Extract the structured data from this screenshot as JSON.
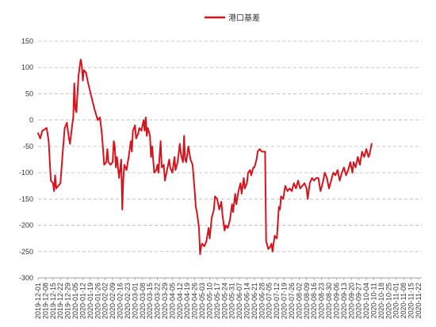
{
  "chart_data": {
    "type": "line",
    "title": "",
    "xlabel": "",
    "ylabel": "",
    "ylim": [
      -300,
      150
    ],
    "y_ticks": [
      150,
      100,
      50,
      0,
      -50,
      -100,
      -150,
      -200,
      -250,
      -300
    ],
    "grid": "horizontal dashed",
    "legend_position": "top-center",
    "x_tick_labels": [
      "2019-12-01",
      "2019-12-08",
      "2019-12-15",
      "2019-12-22",
      "2019-12-29",
      "2020-01-05",
      "2020-01-12",
      "2020-01-19",
      "2020-01-26",
      "2020-02-02",
      "2020-02-09",
      "2020-02-16",
      "2020-02-23",
      "2020-03-01",
      "2020-03-08",
      "2020-03-15",
      "2020-03-22",
      "2020-03-29",
      "2020-04-05",
      "2020-04-12",
      "2020-04-19",
      "2020-04-26",
      "2020-05-03",
      "2020-05-10",
      "2020-05-17",
      "2020-05-24",
      "2020-05-31",
      "2020-06-07",
      "2020-06-14",
      "2020-06-21",
      "2020-06-28",
      "2020-07-05",
      "2020-07-12",
      "2020-07-19",
      "2020-07-26",
      "2020-08-02",
      "2020-08-09",
      "2020-08-16",
      "2020-08-23",
      "2020-08-30",
      "2020-09-06",
      "2020-09-13",
      "2020-09-20",
      "2020-09-27",
      "2020-10-04",
      "2020-10-11",
      "2020-10-18",
      "2020-10-25",
      "2020-11-01",
      "2020-11-08",
      "2020-11-15",
      "2020-11-22"
    ],
    "x_range": [
      "2019-12-01",
      "2020-11-25"
    ],
    "series": [
      {
        "name": "港口基差",
        "color": "#d7141e",
        "points": [
          [
            "2019-12-01",
            -25
          ],
          [
            "2019-12-03",
            -35
          ],
          [
            "2019-12-05",
            -20
          ],
          [
            "2019-12-07",
            -18
          ],
          [
            "2019-12-09",
            -15
          ],
          [
            "2019-12-11",
            -40
          ],
          [
            "2019-12-13",
            -115
          ],
          [
            "2019-12-15",
            -120
          ],
          [
            "2019-12-16",
            -135
          ],
          [
            "2019-12-17",
            -105
          ],
          [
            "2019-12-18",
            -130
          ],
          [
            "2019-12-20",
            -125
          ],
          [
            "2019-12-22",
            -120
          ],
          [
            "2019-12-24",
            -65
          ],
          [
            "2019-12-26",
            -15
          ],
          [
            "2019-12-28",
            -5
          ],
          [
            "2019-12-30",
            -35
          ],
          [
            "2019-12-31",
            -45
          ],
          [
            "2020-01-02",
            -10
          ],
          [
            "2020-01-03",
            5
          ],
          [
            "2020-01-04",
            70
          ],
          [
            "2020-01-05",
            20
          ],
          [
            "2020-01-06",
            15
          ],
          [
            "2020-01-07",
            50
          ],
          [
            "2020-01-08",
            85
          ],
          [
            "2020-01-09",
            100
          ],
          [
            "2020-01-10",
            115
          ],
          [
            "2020-01-11",
            105
          ],
          [
            "2020-01-12",
            75
          ],
          [
            "2020-01-13",
            95
          ],
          [
            "2020-01-15",
            90
          ],
          [
            "2020-01-17",
            70
          ],
          [
            "2020-01-20",
            45
          ],
          [
            "2020-01-23",
            20
          ],
          [
            "2020-01-26",
            0
          ],
          [
            "2020-01-28",
            5
          ],
          [
            "2020-01-29",
            -10
          ],
          [
            "2020-01-30",
            -30
          ],
          [
            "2020-02-01",
            -85
          ],
          [
            "2020-02-03",
            -80
          ],
          [
            "2020-02-04",
            -55
          ],
          [
            "2020-02-05",
            -80
          ],
          [
            "2020-02-07",
            -85
          ],
          [
            "2020-02-09",
            -80
          ],
          [
            "2020-02-10",
            -40
          ],
          [
            "2020-02-11",
            -50
          ],
          [
            "2020-02-12",
            -90
          ],
          [
            "2020-02-13",
            -70
          ],
          [
            "2020-02-15",
            -110
          ],
          [
            "2020-02-17",
            -75
          ],
          [
            "2020-02-18",
            -170
          ],
          [
            "2020-02-19",
            -110
          ],
          [
            "2020-02-20",
            -85
          ],
          [
            "2020-02-22",
            -95
          ],
          [
            "2020-02-24",
            -70
          ],
          [
            "2020-02-26",
            -40
          ],
          [
            "2020-02-27",
            -60
          ],
          [
            "2020-02-28",
            -20
          ],
          [
            "2020-03-01",
            -10
          ],
          [
            "2020-03-02",
            -35
          ],
          [
            "2020-03-04",
            -25
          ],
          [
            "2020-03-05",
            -15
          ],
          [
            "2020-03-07",
            -20
          ],
          [
            "2020-03-09",
            0
          ],
          [
            "2020-03-10",
            -20
          ],
          [
            "2020-03-11",
            5
          ],
          [
            "2020-03-12",
            -30
          ],
          [
            "2020-03-13",
            -15
          ],
          [
            "2020-03-15",
            -30
          ],
          [
            "2020-03-16",
            -70
          ],
          [
            "2020-03-17",
            -50
          ],
          [
            "2020-03-19",
            -100
          ],
          [
            "2020-03-21",
            -95
          ],
          [
            "2020-03-22",
            -85
          ],
          [
            "2020-03-23",
            -100
          ],
          [
            "2020-03-25",
            -40
          ],
          [
            "2020-03-26",
            -90
          ],
          [
            "2020-03-28",
            -85
          ],
          [
            "2020-03-29",
            -115
          ],
          [
            "2020-03-31",
            -95
          ],
          [
            "2020-04-02",
            -75
          ],
          [
            "2020-04-03",
            -90
          ],
          [
            "2020-04-05",
            -100
          ],
          [
            "2020-04-07",
            -70
          ],
          [
            "2020-04-08",
            -95
          ],
          [
            "2020-04-10",
            -80
          ],
          [
            "2020-04-12",
            -45
          ],
          [
            "2020-04-13",
            -65
          ],
          [
            "2020-04-15",
            -80
          ],
          [
            "2020-04-16",
            -30
          ],
          [
            "2020-04-17",
            -75
          ],
          [
            "2020-04-18",
            -80
          ],
          [
            "2020-04-20",
            -50
          ],
          [
            "2020-04-22",
            -75
          ],
          [
            "2020-04-24",
            -85
          ],
          [
            "2020-04-26",
            -135
          ],
          [
            "2020-04-27",
            -165
          ],
          [
            "2020-04-28",
            -175
          ],
          [
            "2020-04-29",
            -190
          ],
          [
            "2020-04-30",
            -205
          ],
          [
            "2020-05-01",
            -255
          ],
          [
            "2020-05-02",
            -240
          ],
          [
            "2020-05-03",
            -235
          ],
          [
            "2020-05-05",
            -240
          ],
          [
            "2020-05-07",
            -230
          ],
          [
            "2020-05-09",
            -205
          ],
          [
            "2020-05-10",
            -225
          ],
          [
            "2020-05-12",
            -185
          ],
          [
            "2020-05-14",
            -170
          ],
          [
            "2020-05-15",
            -145
          ],
          [
            "2020-05-17",
            -150
          ],
          [
            "2020-05-19",
            -170
          ],
          [
            "2020-05-21",
            -155
          ],
          [
            "2020-05-22",
            -180
          ],
          [
            "2020-05-24",
            -210
          ],
          [
            "2020-05-25",
            -200
          ],
          [
            "2020-05-27",
            -205
          ],
          [
            "2020-05-29",
            -190
          ],
          [
            "2020-05-31",
            -160
          ],
          [
            "2020-06-01",
            -175
          ],
          [
            "2020-06-03",
            -140
          ],
          [
            "2020-06-04",
            -160
          ],
          [
            "2020-06-06",
            -135
          ],
          [
            "2020-06-08",
            -120
          ],
          [
            "2020-06-09",
            -140
          ],
          [
            "2020-06-11",
            -110
          ],
          [
            "2020-06-12",
            -130
          ],
          [
            "2020-06-14",
            -120
          ],
          [
            "2020-06-15",
            -100
          ],
          [
            "2020-06-17",
            -95
          ],
          [
            "2020-06-18",
            -105
          ],
          [
            "2020-06-20",
            -90
          ],
          [
            "2020-06-21",
            -90
          ],
          [
            "2020-06-23",
            -75
          ],
          [
            "2020-06-24",
            -60
          ],
          [
            "2020-06-26",
            -55
          ],
          [
            "2020-06-28",
            -60
          ],
          [
            "2020-07-01",
            -60
          ],
          [
            "2020-07-02",
            -230
          ],
          [
            "2020-07-04",
            -245
          ],
          [
            "2020-07-06",
            -240
          ],
          [
            "2020-07-07",
            -235
          ],
          [
            "2020-07-08",
            -250
          ],
          [
            "2020-07-10",
            -220
          ],
          [
            "2020-07-12",
            -225
          ],
          [
            "2020-07-14",
            -165
          ],
          [
            "2020-07-15",
            -170
          ],
          [
            "2020-07-16",
            -145
          ],
          [
            "2020-07-18",
            -150
          ],
          [
            "2020-07-20",
            -125
          ],
          [
            "2020-07-22",
            -135
          ],
          [
            "2020-07-24",
            -130
          ],
          [
            "2020-07-26",
            -135
          ],
          [
            "2020-07-28",
            -120
          ],
          [
            "2020-07-30",
            -130
          ],
          [
            "2020-08-01",
            -115
          ],
          [
            "2020-08-03",
            -130
          ],
          [
            "2020-08-05",
            -125
          ],
          [
            "2020-08-07",
            -120
          ],
          [
            "2020-08-09",
            -130
          ],
          [
            "2020-08-10",
            -150
          ],
          [
            "2020-08-12",
            -120
          ],
          [
            "2020-08-14",
            -110
          ],
          [
            "2020-08-16",
            -115
          ],
          [
            "2020-08-18",
            -110
          ],
          [
            "2020-08-20",
            -110
          ],
          [
            "2020-08-22",
            -135
          ],
          [
            "2020-08-24",
            -120
          ],
          [
            "2020-08-26",
            -100
          ],
          [
            "2020-08-28",
            -110
          ],
          [
            "2020-08-30",
            -130
          ],
          [
            "2020-09-01",
            -115
          ],
          [
            "2020-09-03",
            -100
          ],
          [
            "2020-09-05",
            -105
          ],
          [
            "2020-09-07",
            -95
          ],
          [
            "2020-09-09",
            -115
          ],
          [
            "2020-09-11",
            -100
          ],
          [
            "2020-09-13",
            -90
          ],
          [
            "2020-09-15",
            -105
          ],
          [
            "2020-09-17",
            -95
          ],
          [
            "2020-09-19",
            -80
          ],
          [
            "2020-09-21",
            -100
          ],
          [
            "2020-09-22",
            -80
          ],
          [
            "2020-09-24",
            -90
          ],
          [
            "2020-09-26",
            -70
          ],
          [
            "2020-09-28",
            -85
          ],
          [
            "2020-09-30",
            -60
          ],
          [
            "2020-10-02",
            -70
          ],
          [
            "2020-10-04",
            -55
          ],
          [
            "2020-10-06",
            -70
          ],
          [
            "2020-10-07",
            -65
          ],
          [
            "2020-10-09",
            -45
          ]
        ]
      }
    ]
  }
}
